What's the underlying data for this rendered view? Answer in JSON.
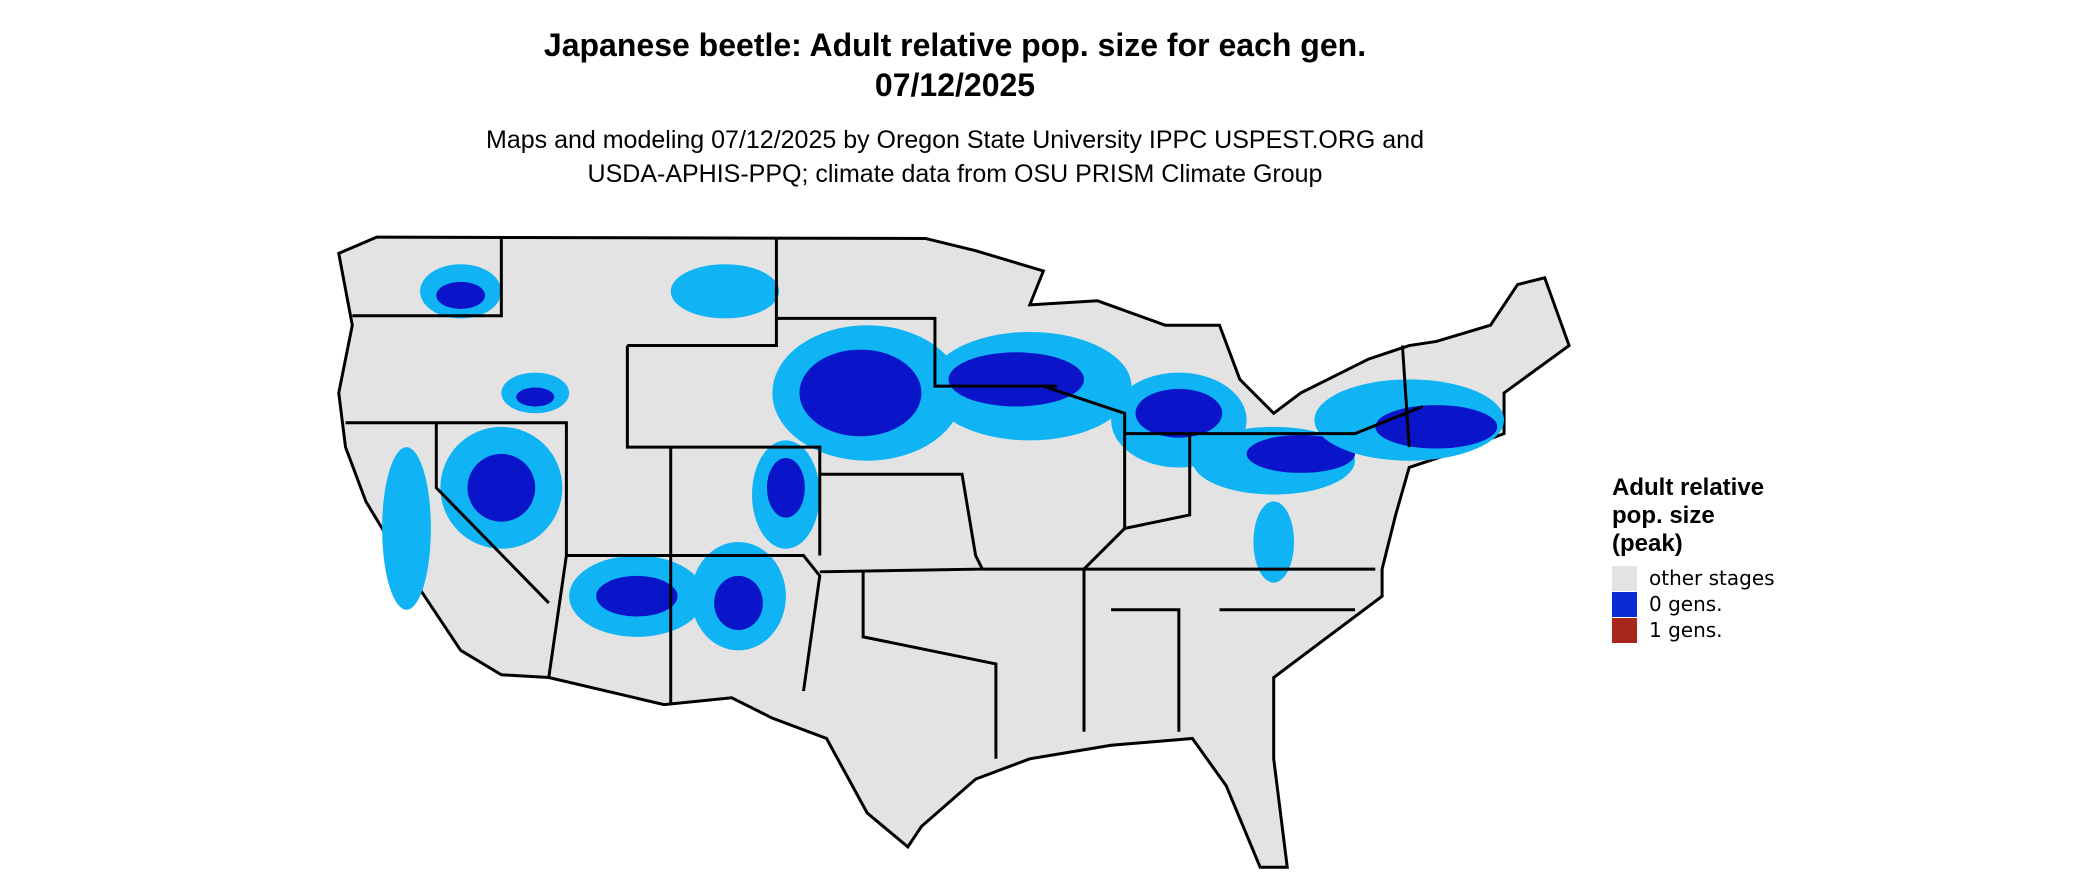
{
  "title": "Japanese beetle: Adult relative pop. size for each gen.",
  "date": "07/12/2025",
  "subtitle": [
    "Maps and modeling 07/12/2025 by Oregon State University IPPC USPEST.ORG and",
    "USDA-APHIS-PPQ; climate data from OSU PRISM Climate Group"
  ],
  "legend": {
    "title": [
      "Adult relative",
      "pop. size",
      "(peak)"
    ],
    "items": [
      {
        "label": "other stages",
        "color": "#e3e3e3"
      },
      {
        "label": "0 gens.",
        "color": "#0a2bd6"
      },
      {
        "label": "1 gens.",
        "color": "#a8261a"
      }
    ]
  }
}
